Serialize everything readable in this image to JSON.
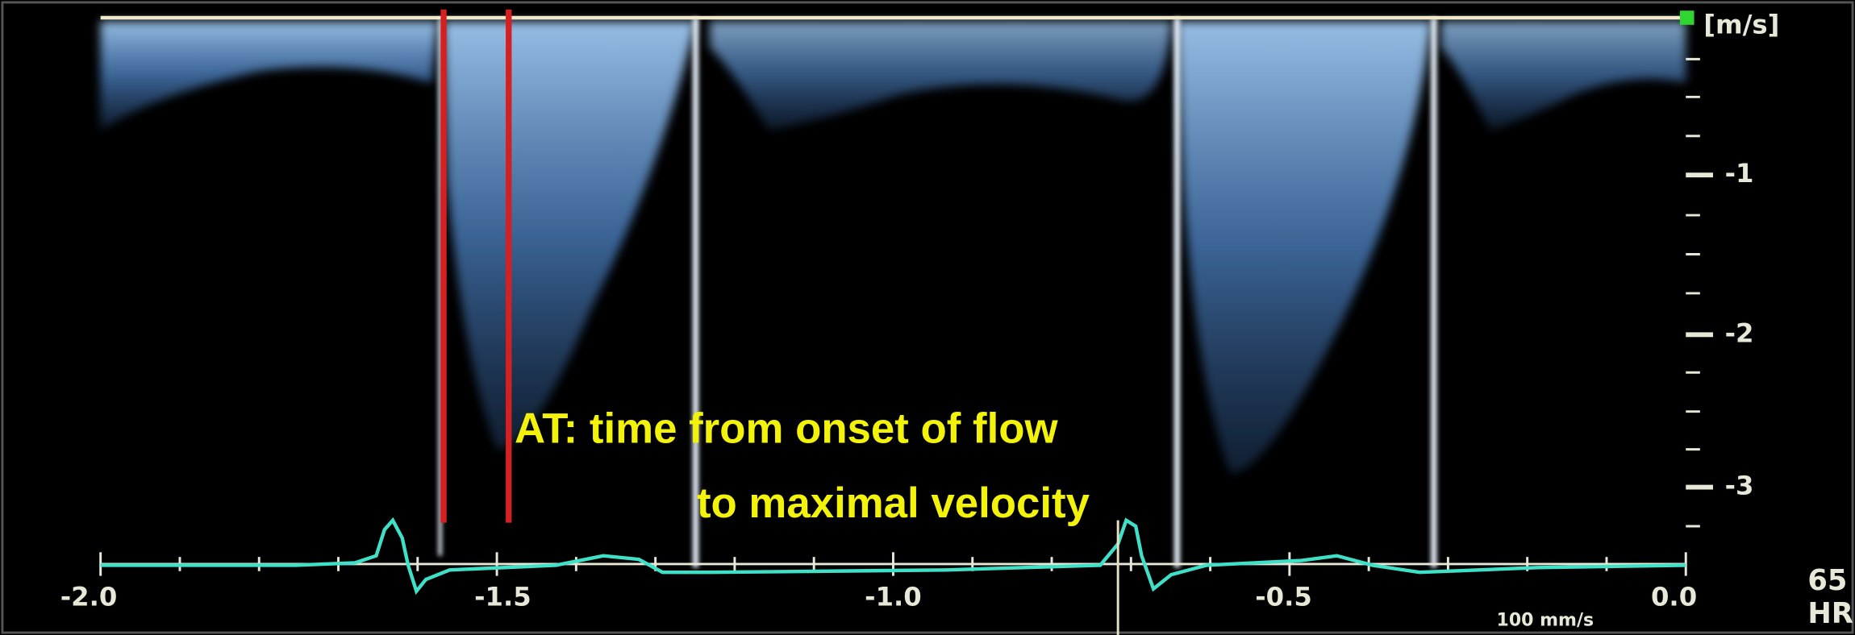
{
  "velocity_axis": {
    "unit": "[m/s]",
    "labels": [
      "-1",
      "-2",
      "-3"
    ]
  },
  "time_axis": {
    "labels": [
      "-2.0",
      "-1.5",
      "-1.0",
      "-0.5",
      "0.0"
    ]
  },
  "annotation": {
    "lines": [
      "AT:  time from onset of flow",
      "to maximal velocity"
    ]
  },
  "sweep_speed": "100 mm/s",
  "heart_rate": {
    "value": "65",
    "label": "HR"
  }
}
